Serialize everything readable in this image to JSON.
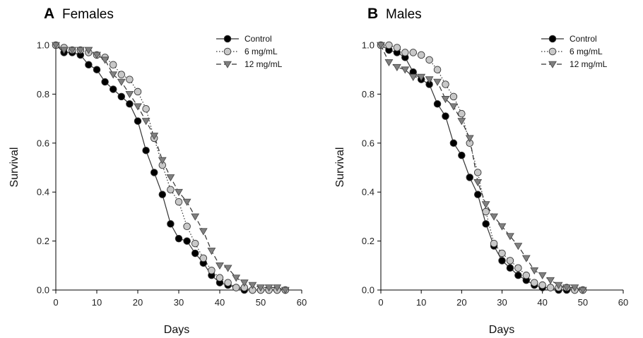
{
  "chart_data": [
    {
      "type": "line",
      "panel_letter": "A",
      "title": "Females",
      "xlabel": "Days",
      "ylabel": "Survival",
      "xlim": [
        0,
        60
      ],
      "ylim": [
        0,
        1.0
      ],
      "xticks": [
        "0",
        "10",
        "20",
        "30",
        "40",
        "50",
        "60"
      ],
      "yticks": [
        "0.0",
        "0.2",
        "0.4",
        "0.6",
        "0.8",
        "1.0"
      ],
      "grid": false,
      "legend_position": "top-right",
      "series": [
        {
          "name": "Control",
          "marker": "circle",
          "line_style": "solid",
          "marker_color": "#000000",
          "x": [
            0,
            2,
            4,
            6,
            8,
            10,
            12,
            14,
            16,
            18,
            20,
            22,
            24,
            26,
            28,
            30,
            32,
            34,
            36,
            38,
            40,
            42,
            44,
            46,
            48,
            50,
            52,
            54,
            56
          ],
          "y": [
            1.0,
            0.97,
            0.97,
            0.96,
            0.92,
            0.9,
            0.85,
            0.82,
            0.79,
            0.76,
            0.69,
            0.57,
            0.48,
            0.39,
            0.27,
            0.21,
            0.2,
            0.15,
            0.11,
            0.06,
            0.03,
            0.02,
            0.01,
            0.0,
            0.0,
            0.0,
            0.0,
            0.0,
            0.0
          ]
        },
        {
          "name": "6 mg/mL",
          "marker": "circle",
          "line_style": "dotted",
          "marker_color": "#c8c8c8",
          "x": [
            0,
            2,
            4,
            6,
            8,
            10,
            12,
            14,
            16,
            18,
            20,
            22,
            24,
            26,
            28,
            30,
            32,
            34,
            36,
            38,
            40,
            42,
            44,
            46,
            48,
            50,
            52,
            54,
            56
          ],
          "y": [
            1.0,
            0.99,
            0.98,
            0.98,
            0.97,
            0.96,
            0.95,
            0.92,
            0.88,
            0.86,
            0.81,
            0.74,
            0.62,
            0.51,
            0.41,
            0.36,
            0.26,
            0.19,
            0.13,
            0.08,
            0.05,
            0.03,
            0.01,
            0.01,
            0.0,
            0.0,
            0.0,
            0.0,
            0.0
          ]
        },
        {
          "name": "12 mg/mL",
          "marker": "triangle-down",
          "line_style": "dashed",
          "marker_color": "#808080",
          "x": [
            0,
            2,
            4,
            6,
            8,
            10,
            12,
            14,
            16,
            18,
            20,
            22,
            24,
            26,
            28,
            30,
            32,
            34,
            36,
            38,
            40,
            42,
            44,
            46,
            48,
            50,
            52,
            54,
            56
          ],
          "y": [
            1.0,
            0.98,
            0.98,
            0.98,
            0.98,
            0.96,
            0.94,
            0.88,
            0.85,
            0.8,
            0.75,
            0.69,
            0.63,
            0.53,
            0.46,
            0.4,
            0.36,
            0.3,
            0.24,
            0.16,
            0.1,
            0.09,
            0.05,
            0.03,
            0.02,
            0.01,
            0.01,
            0.01,
            0.0
          ]
        }
      ]
    },
    {
      "type": "line",
      "panel_letter": "B",
      "title": "Males",
      "xlabel": "Days",
      "ylabel": "Survival",
      "xlim": [
        0,
        60
      ],
      "ylim": [
        0,
        1.0
      ],
      "xticks": [
        "0",
        "10",
        "20",
        "30",
        "40",
        "50",
        "60"
      ],
      "yticks": [
        "0.0",
        "0.2",
        "0.4",
        "0.6",
        "0.8",
        "1.0"
      ],
      "grid": false,
      "legend_position": "top-right",
      "series": [
        {
          "name": "Control",
          "marker": "circle",
          "line_style": "solid",
          "marker_color": "#000000",
          "x": [
            0,
            2,
            4,
            6,
            8,
            10,
            12,
            14,
            16,
            18,
            20,
            22,
            24,
            26,
            28,
            30,
            32,
            34,
            36,
            38,
            40,
            42,
            44,
            46,
            48,
            50
          ],
          "y": [
            1.0,
            0.98,
            0.97,
            0.95,
            0.89,
            0.86,
            0.84,
            0.76,
            0.71,
            0.6,
            0.55,
            0.46,
            0.39,
            0.27,
            0.18,
            0.12,
            0.09,
            0.06,
            0.04,
            0.02,
            0.01,
            0.01,
            0.0,
            0.0,
            0.0,
            0.0
          ]
        },
        {
          "name": "6 mg/mL",
          "marker": "circle",
          "line_style": "dotted",
          "marker_color": "#c8c8c8",
          "x": [
            0,
            2,
            4,
            6,
            8,
            10,
            12,
            14,
            16,
            18,
            20,
            22,
            24,
            26,
            28,
            30,
            32,
            34,
            36,
            38,
            40,
            42,
            44,
            46,
            48,
            50
          ],
          "y": [
            1.0,
            1.0,
            0.99,
            0.97,
            0.97,
            0.96,
            0.94,
            0.9,
            0.84,
            0.79,
            0.72,
            0.6,
            0.48,
            0.32,
            0.19,
            0.15,
            0.12,
            0.09,
            0.06,
            0.03,
            0.02,
            0.01,
            0.01,
            0.01,
            0.0,
            0.0
          ]
        },
        {
          "name": "12 mg/mL",
          "marker": "triangle-down",
          "line_style": "dashed",
          "marker_color": "#808080",
          "x": [
            0,
            2,
            4,
            6,
            8,
            10,
            12,
            14,
            16,
            18,
            20,
            22,
            24,
            26,
            28,
            30,
            32,
            34,
            36,
            38,
            40,
            42,
            44,
            46,
            48,
            50
          ],
          "y": [
            1.0,
            0.93,
            0.91,
            0.9,
            0.87,
            0.87,
            0.86,
            0.85,
            0.78,
            0.75,
            0.69,
            0.62,
            0.44,
            0.35,
            0.3,
            0.26,
            0.22,
            0.18,
            0.13,
            0.08,
            0.06,
            0.04,
            0.02,
            0.01,
            0.01,
            0.0
          ]
        }
      ]
    }
  ]
}
